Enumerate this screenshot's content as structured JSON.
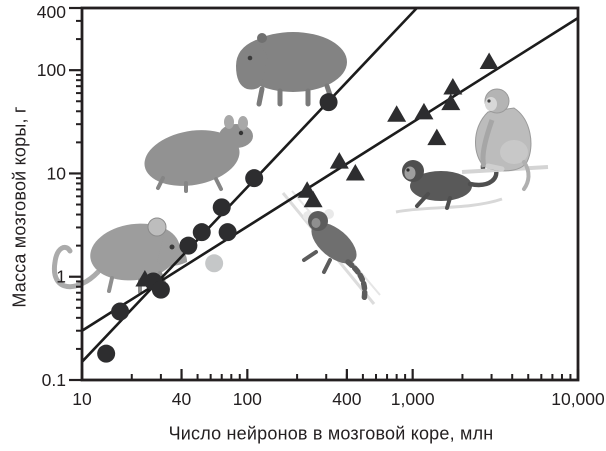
{
  "figure": {
    "background": "#ffffff",
    "axis_color": "#231f20",
    "text_color": "#231f20",
    "fit_line_color": "#1c1c1c",
    "marker_color": "#2d2d2f",
    "gray_marker_color": "#c5c7c8"
  },
  "chart_data": {
    "type": "scatter",
    "x_scale": "log",
    "y_scale": "log",
    "xlim": [
      10,
      10000
    ],
    "ylim": [
      0.1,
      400
    ],
    "xlabel": "Число нейронов в мозговой коре, млн",
    "ylabel": "Масса мозговой коры, г",
    "grid": false,
    "legend": "none",
    "x_ticks": [
      {
        "value": 10,
        "label": "10"
      },
      {
        "value": 40,
        "label": "40"
      },
      {
        "value": 100,
        "label": "100"
      },
      {
        "value": 400,
        "label": "400"
      },
      {
        "value": 1000,
        "label": "1,000"
      },
      {
        "value": 10000,
        "label": "10,000"
      }
    ],
    "y_ticks": [
      {
        "value": 400,
        "label": "400"
      },
      {
        "value": 100,
        "label": "100"
      },
      {
        "value": 10,
        "label": "10"
      },
      {
        "value": 1,
        "label": "1"
      },
      {
        "value": 0.1,
        "label": "0.1"
      }
    ],
    "series": [
      {
        "name": "rodents",
        "marker": "circle",
        "color": "#2d2d2f",
        "points": [
          [
            14,
            0.18
          ],
          [
            17,
            0.46
          ],
          [
            27,
            0.9
          ],
          [
            30,
            0.75
          ],
          [
            44,
            2.0
          ],
          [
            53,
            2.7
          ],
          [
            76,
            2.7
          ],
          [
            70,
            4.7
          ],
          [
            110,
            9.0
          ],
          [
            310,
            49
          ]
        ]
      },
      {
        "name": "rodent-gray",
        "marker": "circle",
        "color": "#c5c7c8",
        "points": [
          [
            63,
            1.35
          ]
        ]
      },
      {
        "name": "primates",
        "marker": "triangle",
        "color": "#2d2d2f",
        "points": [
          [
            24,
            0.94
          ],
          [
            230,
            6.8
          ],
          [
            250,
            5.5
          ],
          [
            360,
            13
          ],
          [
            450,
            10
          ],
          [
            800,
            37
          ],
          [
            1170,
            39
          ],
          [
            1400,
            22
          ],
          [
            1700,
            48
          ],
          [
            1750,
            68
          ],
          [
            2900,
            120
          ]
        ]
      }
    ],
    "fit_lines": [
      {
        "name": "rodent-fit",
        "from": [
          10,
          0.15
        ],
        "to": [
          1060,
          400
        ]
      },
      {
        "name": "primate-fit",
        "from": [
          10,
          0.3
        ],
        "to": [
          10000,
          320
        ]
      }
    ]
  },
  "animal_illustrations": [
    "mouse",
    "agouti",
    "capybara",
    "marmoset",
    "capuchin",
    "macaque"
  ]
}
